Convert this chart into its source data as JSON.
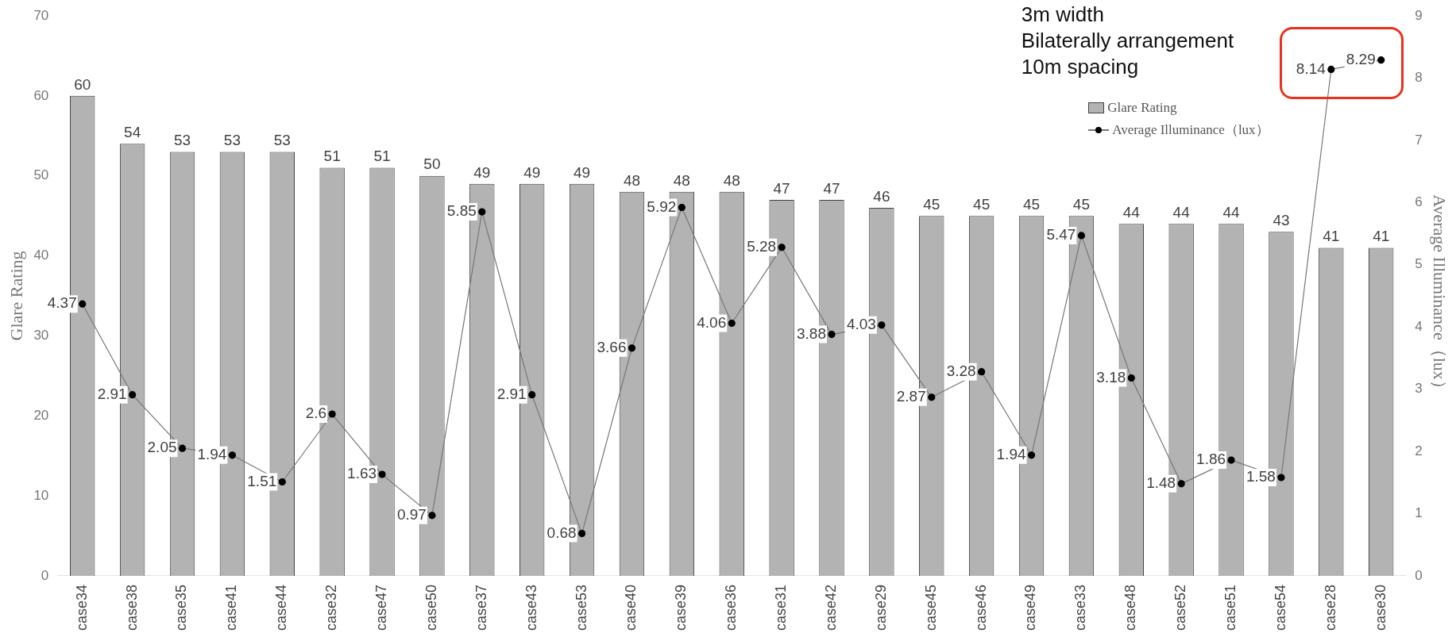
{
  "chart_data": {
    "type": "bar",
    "categories": [
      "case34",
      "case38",
      "case35",
      "case41",
      "case44",
      "case32",
      "case47",
      "case50",
      "case37",
      "case43",
      "case53",
      "case40",
      "case39",
      "case36",
      "case31",
      "case42",
      "case29",
      "case45",
      "case46",
      "case49",
      "case33",
      "case48",
      "case52",
      "case51",
      "case54",
      "case28",
      "case30"
    ],
    "series": [
      {
        "name": "Glare Rating",
        "color": "#b3b3b3",
        "values": [
          60,
          54,
          53,
          53,
          53,
          51,
          51,
          50,
          49,
          49,
          49,
          48,
          48,
          48,
          47,
          47,
          46,
          45,
          45,
          45,
          45,
          44,
          44,
          44,
          43,
          41,
          41
        ]
      },
      {
        "name": "Average Illuminance（lux）",
        "type": "line",
        "axis": "y2",
        "color": "#000000",
        "values": [
          4.37,
          2.91,
          2.05,
          1.94,
          1.51,
          2.6,
          1.63,
          0.97,
          5.85,
          2.91,
          0.68,
          3.66,
          5.92,
          4.06,
          5.28,
          3.88,
          4.03,
          2.87,
          3.28,
          1.94,
          5.47,
          3.18,
          1.48,
          1.86,
          1.58,
          8.14,
          8.29
        ]
      }
    ],
    "ylabel": "Glare Rating",
    "y2label": "Average Illuminance（lux）",
    "ylim": [
      0,
      70
    ],
    "yticks": [
      0,
      10,
      20,
      30,
      40,
      50,
      60,
      70
    ],
    "y2lim": [
      0,
      9
    ],
    "y2ticks": [
      0,
      1,
      2,
      3,
      4,
      5,
      6,
      7,
      8,
      9
    ],
    "data_labels": true,
    "grid": false,
    "legend": "top right",
    "marker": "circle",
    "line_style": "solid",
    "annotations": [
      "3m width\nBilaterally arrangement\n10m spacing"
    ]
  }
}
